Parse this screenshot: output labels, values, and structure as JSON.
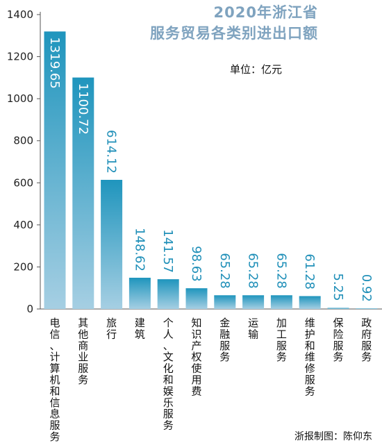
{
  "chart_data": {
    "type": "bar",
    "title": "2020年浙江省",
    "subtitle": "服务贸易各类别进出口额",
    "unit_label": "单位：亿元",
    "credit": "浙报制图：陈仰东",
    "categories": [
      "电信、计算机和信息服务",
      "其他商业服务",
      "旅行",
      "建筑",
      "个人、文化和娱乐服务",
      "知识产权使用费",
      "金融服务",
      "运输",
      "加工服务",
      "维护和维修服务",
      "保险服务",
      "政府服务"
    ],
    "values": [
      1319.65,
      1100.72,
      614.12,
      148.62,
      141.57,
      98.63,
      65.28,
      65.28,
      65.28,
      61.28,
      5.25,
      0.92
    ],
    "value_labels": [
      "1319.65",
      "1100.72",
      "614.12",
      "148.62",
      "141.57",
      "98.63",
      "65.28",
      "65.28",
      "65.28",
      "61.28",
      "5.25",
      "0.92"
    ],
    "yticks": [
      0,
      200,
      400,
      600,
      800,
      1000,
      1200,
      1400
    ],
    "ylim": [
      0,
      1400
    ],
    "grid": false,
    "colors": {
      "bar_top": "#1f95bd",
      "bar_bottom": "#a6cfe3",
      "label_on_bar": "#ffffff",
      "label_above_bar": "#1f8fb8",
      "title": "#7fa3bf",
      "axis": "#555555"
    }
  }
}
